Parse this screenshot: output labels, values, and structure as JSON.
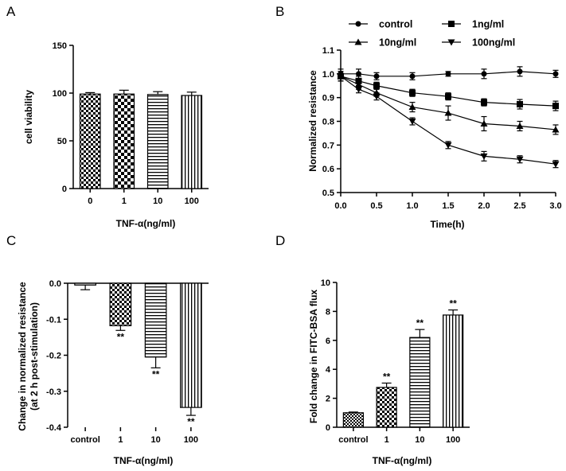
{
  "chart_data": [
    {
      "panel": "A",
      "type": "bar",
      "categories": [
        "0",
        "1",
        "10",
        "100"
      ],
      "values": [
        99,
        99,
        98.5,
        97.5
      ],
      "errors": [
        1.5,
        4,
        3,
        3.5
      ],
      "patterns": [
        "checker",
        "checker-large",
        "hstripe",
        "vstripe"
      ],
      "xlabel": "TNF-α(ng/ml)",
      "ylabel": "cell viability",
      "ylim": [
        0,
        150
      ],
      "yticks": [
        "0",
        "50",
        "100",
        "150"
      ]
    },
    {
      "panel": "B",
      "type": "line",
      "x": [
        0,
        0.25,
        0.5,
        1,
        1.5,
        2,
        2.5,
        3
      ],
      "series": [
        {
          "name": "control",
          "marker": "circle",
          "values": [
            1.0,
            1.0,
            0.99,
            0.99,
            1.0,
            1.0,
            1.01,
            1.0
          ],
          "errors": [
            0.02,
            0.02,
            0.015,
            0.015,
            0.01,
            0.02,
            0.02,
            0.015
          ]
        },
        {
          "name": "1ng/ml",
          "marker": "square",
          "values": [
            0.99,
            0.97,
            0.95,
            0.92,
            0.905,
            0.88,
            0.872,
            0.865
          ],
          "errors": [
            0.02,
            0.02,
            0.015,
            0.015,
            0.015,
            0.015,
            0.02,
            0.02
          ]
        },
        {
          "name": "10ng/ml",
          "marker": "triangle-up",
          "values": [
            0.99,
            0.955,
            0.92,
            0.86,
            0.835,
            0.79,
            0.78,
            0.765
          ],
          "errors": [
            0.02,
            0.02,
            0.015,
            0.02,
            0.03,
            0.03,
            0.02,
            0.02
          ]
        },
        {
          "name": "100ng/ml",
          "marker": "triangle-down",
          "values": [
            0.99,
            0.935,
            0.905,
            0.8,
            0.7,
            0.653,
            0.64,
            0.62
          ],
          "errors": [
            0.02,
            0.015,
            0.015,
            0.015,
            0.015,
            0.02,
            0.015,
            0.015
          ]
        }
      ],
      "xlabel": "Time(h)",
      "ylabel": "Normalized resistance",
      "xlim": [
        0,
        3
      ],
      "ylim": [
        0.5,
        1.1
      ],
      "xticks": [
        "0.0",
        "0.5",
        "1.0",
        "1.5",
        "2.0",
        "2.5",
        "3.0"
      ],
      "yticks": [
        "0.5",
        "0.6",
        "0.7",
        "0.8",
        "0.9",
        "1.0",
        "1.1"
      ],
      "legend": "top"
    },
    {
      "panel": "C",
      "type": "bar",
      "categories": [
        "control",
        "1",
        "10",
        "100"
      ],
      "values": [
        -0.005,
        -0.118,
        -0.205,
        -0.345
      ],
      "errors": [
        0.013,
        0.013,
        0.03,
        0.022
      ],
      "annotations": [
        "",
        "**",
        "**",
        "**"
      ],
      "patterns": [
        "solid-light",
        "checker",
        "hstripe",
        "vstripe"
      ],
      "xlabel": "TNF-α(ng/ml)",
      "ylabel": "Change in normalized resistance",
      "ylabel2": "(at 2 h post-stimulation)",
      "ylim": [
        -0.4,
        0.0
      ],
      "yticks": [
        "0.0",
        "-0.1",
        "-0.2",
        "-0.3",
        "-0.4"
      ]
    },
    {
      "panel": "D",
      "type": "bar",
      "categories": [
        "control",
        "1",
        "10",
        "100"
      ],
      "values": [
        1.0,
        2.75,
        6.2,
        7.75
      ],
      "errors": [
        0.05,
        0.3,
        0.55,
        0.35
      ],
      "annotations": [
        "",
        "**",
        "**",
        "**"
      ],
      "patterns": [
        "checker-fine",
        "checker",
        "hstripe",
        "vstripe"
      ],
      "xlabel": "TNF-α(ng/ml)",
      "ylabel": "Fold change in FITC-BSA flux",
      "ylim": [
        0,
        10
      ],
      "yticks": [
        "0",
        "2",
        "4",
        "6",
        "8",
        "10"
      ]
    }
  ],
  "panel_letters": {
    "a": "A",
    "b": "B",
    "c": "C",
    "d": "D"
  },
  "colors": {
    "ink": "#000000",
    "light_fill": "#d9d9d9"
  }
}
